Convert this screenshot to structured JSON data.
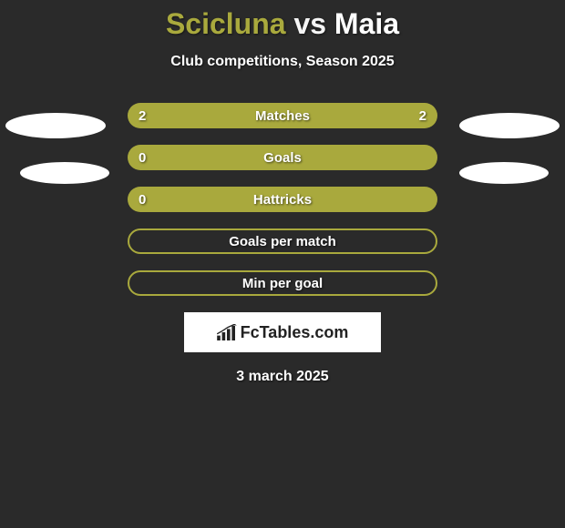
{
  "title": {
    "player1": "Scicluna",
    "vs": "vs",
    "player2": "Maia"
  },
  "subtitle": "Club competitions, Season 2025",
  "colors": {
    "background": "#2a2a2a",
    "bar_fill": "#a9a93d",
    "text": "#ffffff",
    "ellipse": "#ffffff",
    "logo_bg": "#ffffff",
    "logo_text": "#222222"
  },
  "stats": [
    {
      "label": "Matches",
      "left_value": "2",
      "right_value": "2",
      "has_values": true
    },
    {
      "label": "Goals",
      "left_value": "0",
      "right_value": "",
      "has_values": true
    },
    {
      "label": "Hattricks",
      "left_value": "0",
      "right_value": "",
      "has_values": true
    },
    {
      "label": "Goals per match",
      "left_value": "",
      "right_value": "",
      "has_values": false
    },
    {
      "label": "Min per goal",
      "left_value": "",
      "right_value": "",
      "has_values": false
    }
  ],
  "logo_text": "FcTables.com",
  "date": "3 march 2025",
  "layout": {
    "stat_bar_width": 340,
    "stat_bar_height": 28,
    "stat_bar_radius": 14
  }
}
